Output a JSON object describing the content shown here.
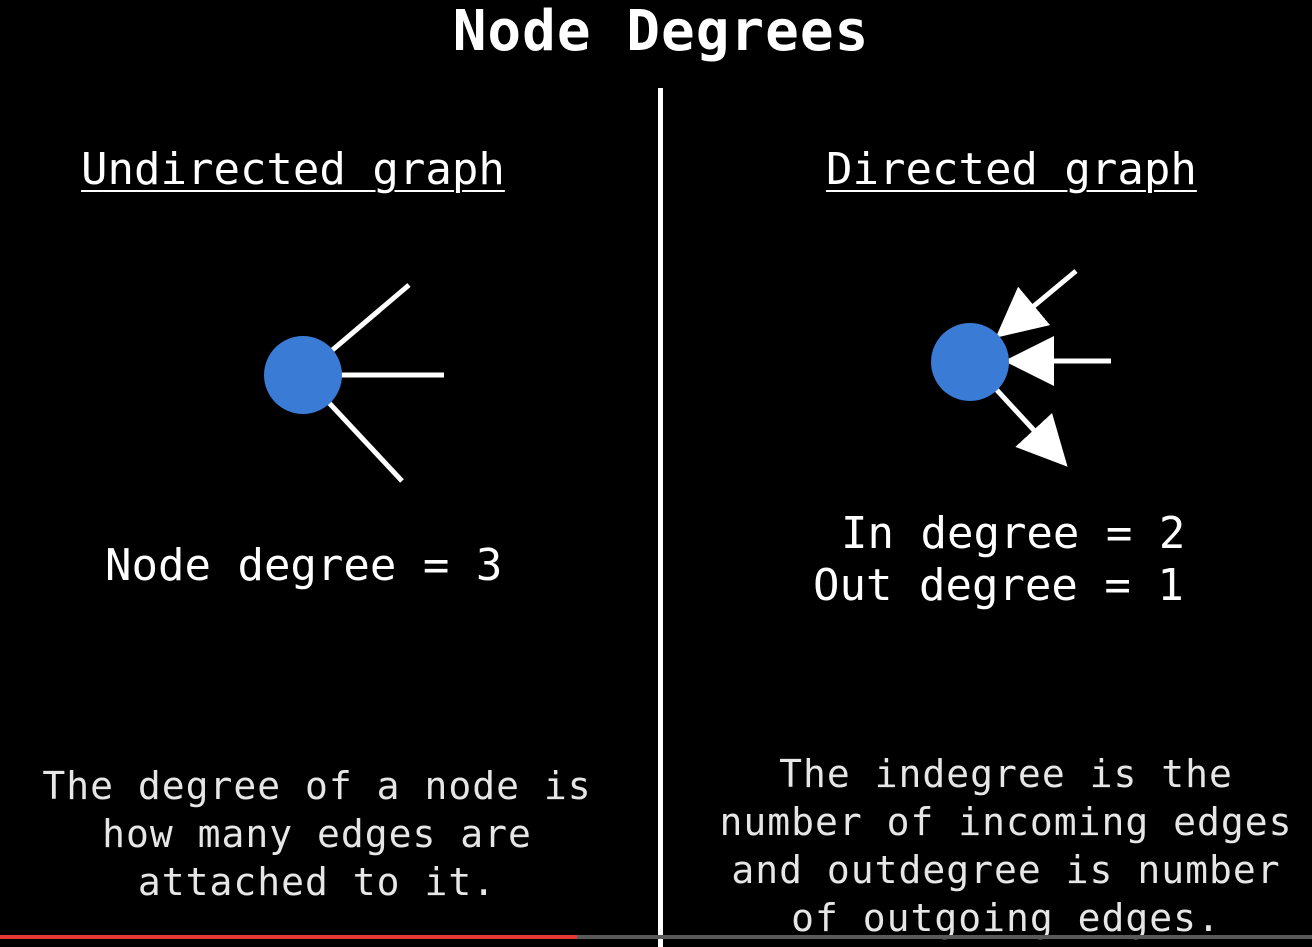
{
  "title": "Node Degrees",
  "left_panel": {
    "heading": "Undirected graph",
    "degree_line": "Node degree = 3",
    "description_lines": [
      "The degree of a node is",
      "how many edges are",
      "attached to it."
    ]
  },
  "right_panel": {
    "heading": "Directed graph",
    "in_degree_line": "In degree = 2",
    "out_degree_line": "Out degree = 1",
    "description_lines": [
      "The indegree is the",
      "number of incoming edges",
      "and outdegree is number",
      "of outgoing edges."
    ]
  },
  "colors": {
    "background": "#000000",
    "node": "#3a7bd5",
    "edge": "#ffffff",
    "text": "#ffffff",
    "progress": "#e53935"
  },
  "video_progress": 0.44
}
